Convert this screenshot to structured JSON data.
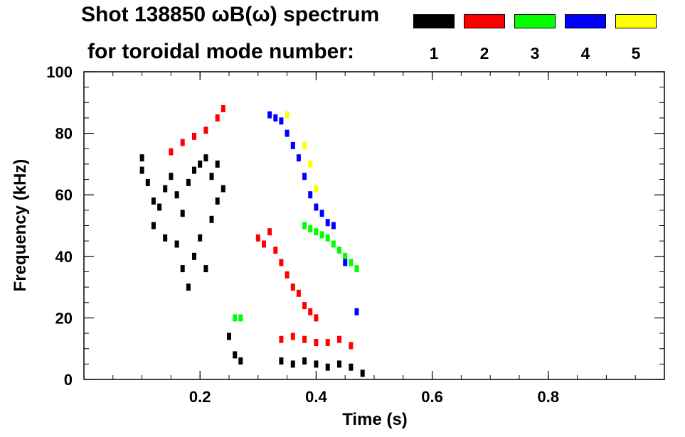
{
  "header": {
    "title_line1": "Shot 138850 ωB(ω) spectrum",
    "title_line2": "for toroidal mode number:"
  },
  "legend": [
    {
      "mode": "1",
      "color": "#000000"
    },
    {
      "mode": "2",
      "color": "#ff0000"
    },
    {
      "mode": "3",
      "color": "#00ff00"
    },
    {
      "mode": "4",
      "color": "#0000ff"
    },
    {
      "mode": "5",
      "color": "#ffff00"
    }
  ],
  "chart_data": {
    "type": "scatter",
    "title": "Shot 138850 ωB(ω) spectrum",
    "xlabel": "Time (s)",
    "ylabel": "Frequency (kHz)",
    "xlim": [
      0,
      1.0
    ],
    "ylim": [
      0,
      100
    ],
    "x_ticks": [
      {
        "v": 0.2,
        "label": "0.2"
      },
      {
        "v": 0.4,
        "label": "0.4"
      },
      {
        "v": 0.6,
        "label": "0.6"
      },
      {
        "v": 0.8,
        "label": "0.8"
      }
    ],
    "y_ticks": [
      {
        "v": 0,
        "label": "0"
      },
      {
        "v": 20,
        "label": "20"
      },
      {
        "v": 40,
        "label": "40"
      },
      {
        "v": 60,
        "label": "60"
      },
      {
        "v": 80,
        "label": "80"
      },
      {
        "v": 100,
        "label": "100"
      }
    ],
    "series": [
      {
        "name": "1",
        "color": "#000000",
        "points": [
          [
            0.1,
            72
          ],
          [
            0.1,
            68
          ],
          [
            0.11,
            64
          ],
          [
            0.12,
            58
          ],
          [
            0.13,
            56
          ],
          [
            0.14,
            62
          ],
          [
            0.15,
            66
          ],
          [
            0.16,
            60
          ],
          [
            0.17,
            54
          ],
          [
            0.18,
            64
          ],
          [
            0.19,
            68
          ],
          [
            0.2,
            70
          ],
          [
            0.21,
            72
          ],
          [
            0.22,
            66
          ],
          [
            0.23,
            70
          ],
          [
            0.24,
            62
          ],
          [
            0.12,
            50
          ],
          [
            0.14,
            46
          ],
          [
            0.16,
            44
          ],
          [
            0.17,
            36
          ],
          [
            0.18,
            30
          ],
          [
            0.19,
            40
          ],
          [
            0.2,
            46
          ],
          [
            0.21,
            36
          ],
          [
            0.22,
            52
          ],
          [
            0.23,
            58
          ],
          [
            0.25,
            14
          ],
          [
            0.26,
            8
          ],
          [
            0.27,
            6
          ],
          [
            0.34,
            6
          ],
          [
            0.36,
            5
          ],
          [
            0.38,
            6
          ],
          [
            0.4,
            5
          ],
          [
            0.42,
            4
          ],
          [
            0.44,
            5
          ],
          [
            0.46,
            4
          ],
          [
            0.48,
            2
          ]
        ]
      },
      {
        "name": "2",
        "color": "#ff0000",
        "points": [
          [
            0.15,
            74
          ],
          [
            0.17,
            77
          ],
          [
            0.19,
            79
          ],
          [
            0.21,
            81
          ],
          [
            0.23,
            85
          ],
          [
            0.24,
            88
          ],
          [
            0.3,
            46
          ],
          [
            0.31,
            44
          ],
          [
            0.32,
            48
          ],
          [
            0.33,
            42
          ],
          [
            0.34,
            38
          ],
          [
            0.35,
            34
          ],
          [
            0.36,
            30
          ],
          [
            0.37,
            28
          ],
          [
            0.38,
            24
          ],
          [
            0.39,
            22
          ],
          [
            0.4,
            20
          ],
          [
            0.34,
            13
          ],
          [
            0.36,
            14
          ],
          [
            0.38,
            13
          ],
          [
            0.4,
            12
          ],
          [
            0.42,
            12
          ],
          [
            0.44,
            13
          ],
          [
            0.46,
            11
          ]
        ]
      },
      {
        "name": "3",
        "color": "#00ff00",
        "points": [
          [
            0.38,
            50
          ],
          [
            0.39,
            49
          ],
          [
            0.4,
            48
          ],
          [
            0.41,
            47
          ],
          [
            0.42,
            46
          ],
          [
            0.43,
            44
          ],
          [
            0.44,
            42
          ],
          [
            0.45,
            40
          ],
          [
            0.46,
            38
          ],
          [
            0.47,
            36
          ],
          [
            0.26,
            20
          ],
          [
            0.27,
            20
          ]
        ]
      },
      {
        "name": "4",
        "color": "#0000ff",
        "points": [
          [
            0.32,
            86
          ],
          [
            0.33,
            85
          ],
          [
            0.34,
            84
          ],
          [
            0.35,
            80
          ],
          [
            0.36,
            76
          ],
          [
            0.37,
            72
          ],
          [
            0.38,
            66
          ],
          [
            0.39,
            60
          ],
          [
            0.4,
            56
          ],
          [
            0.41,
            54
          ],
          [
            0.42,
            51
          ],
          [
            0.43,
            50
          ],
          [
            0.45,
            38
          ],
          [
            0.47,
            22
          ]
        ]
      },
      {
        "name": "5",
        "color": "#ffff00",
        "points": [
          [
            0.35,
            86
          ],
          [
            0.38,
            76
          ],
          [
            0.39,
            70
          ],
          [
            0.4,
            62
          ]
        ]
      }
    ]
  }
}
